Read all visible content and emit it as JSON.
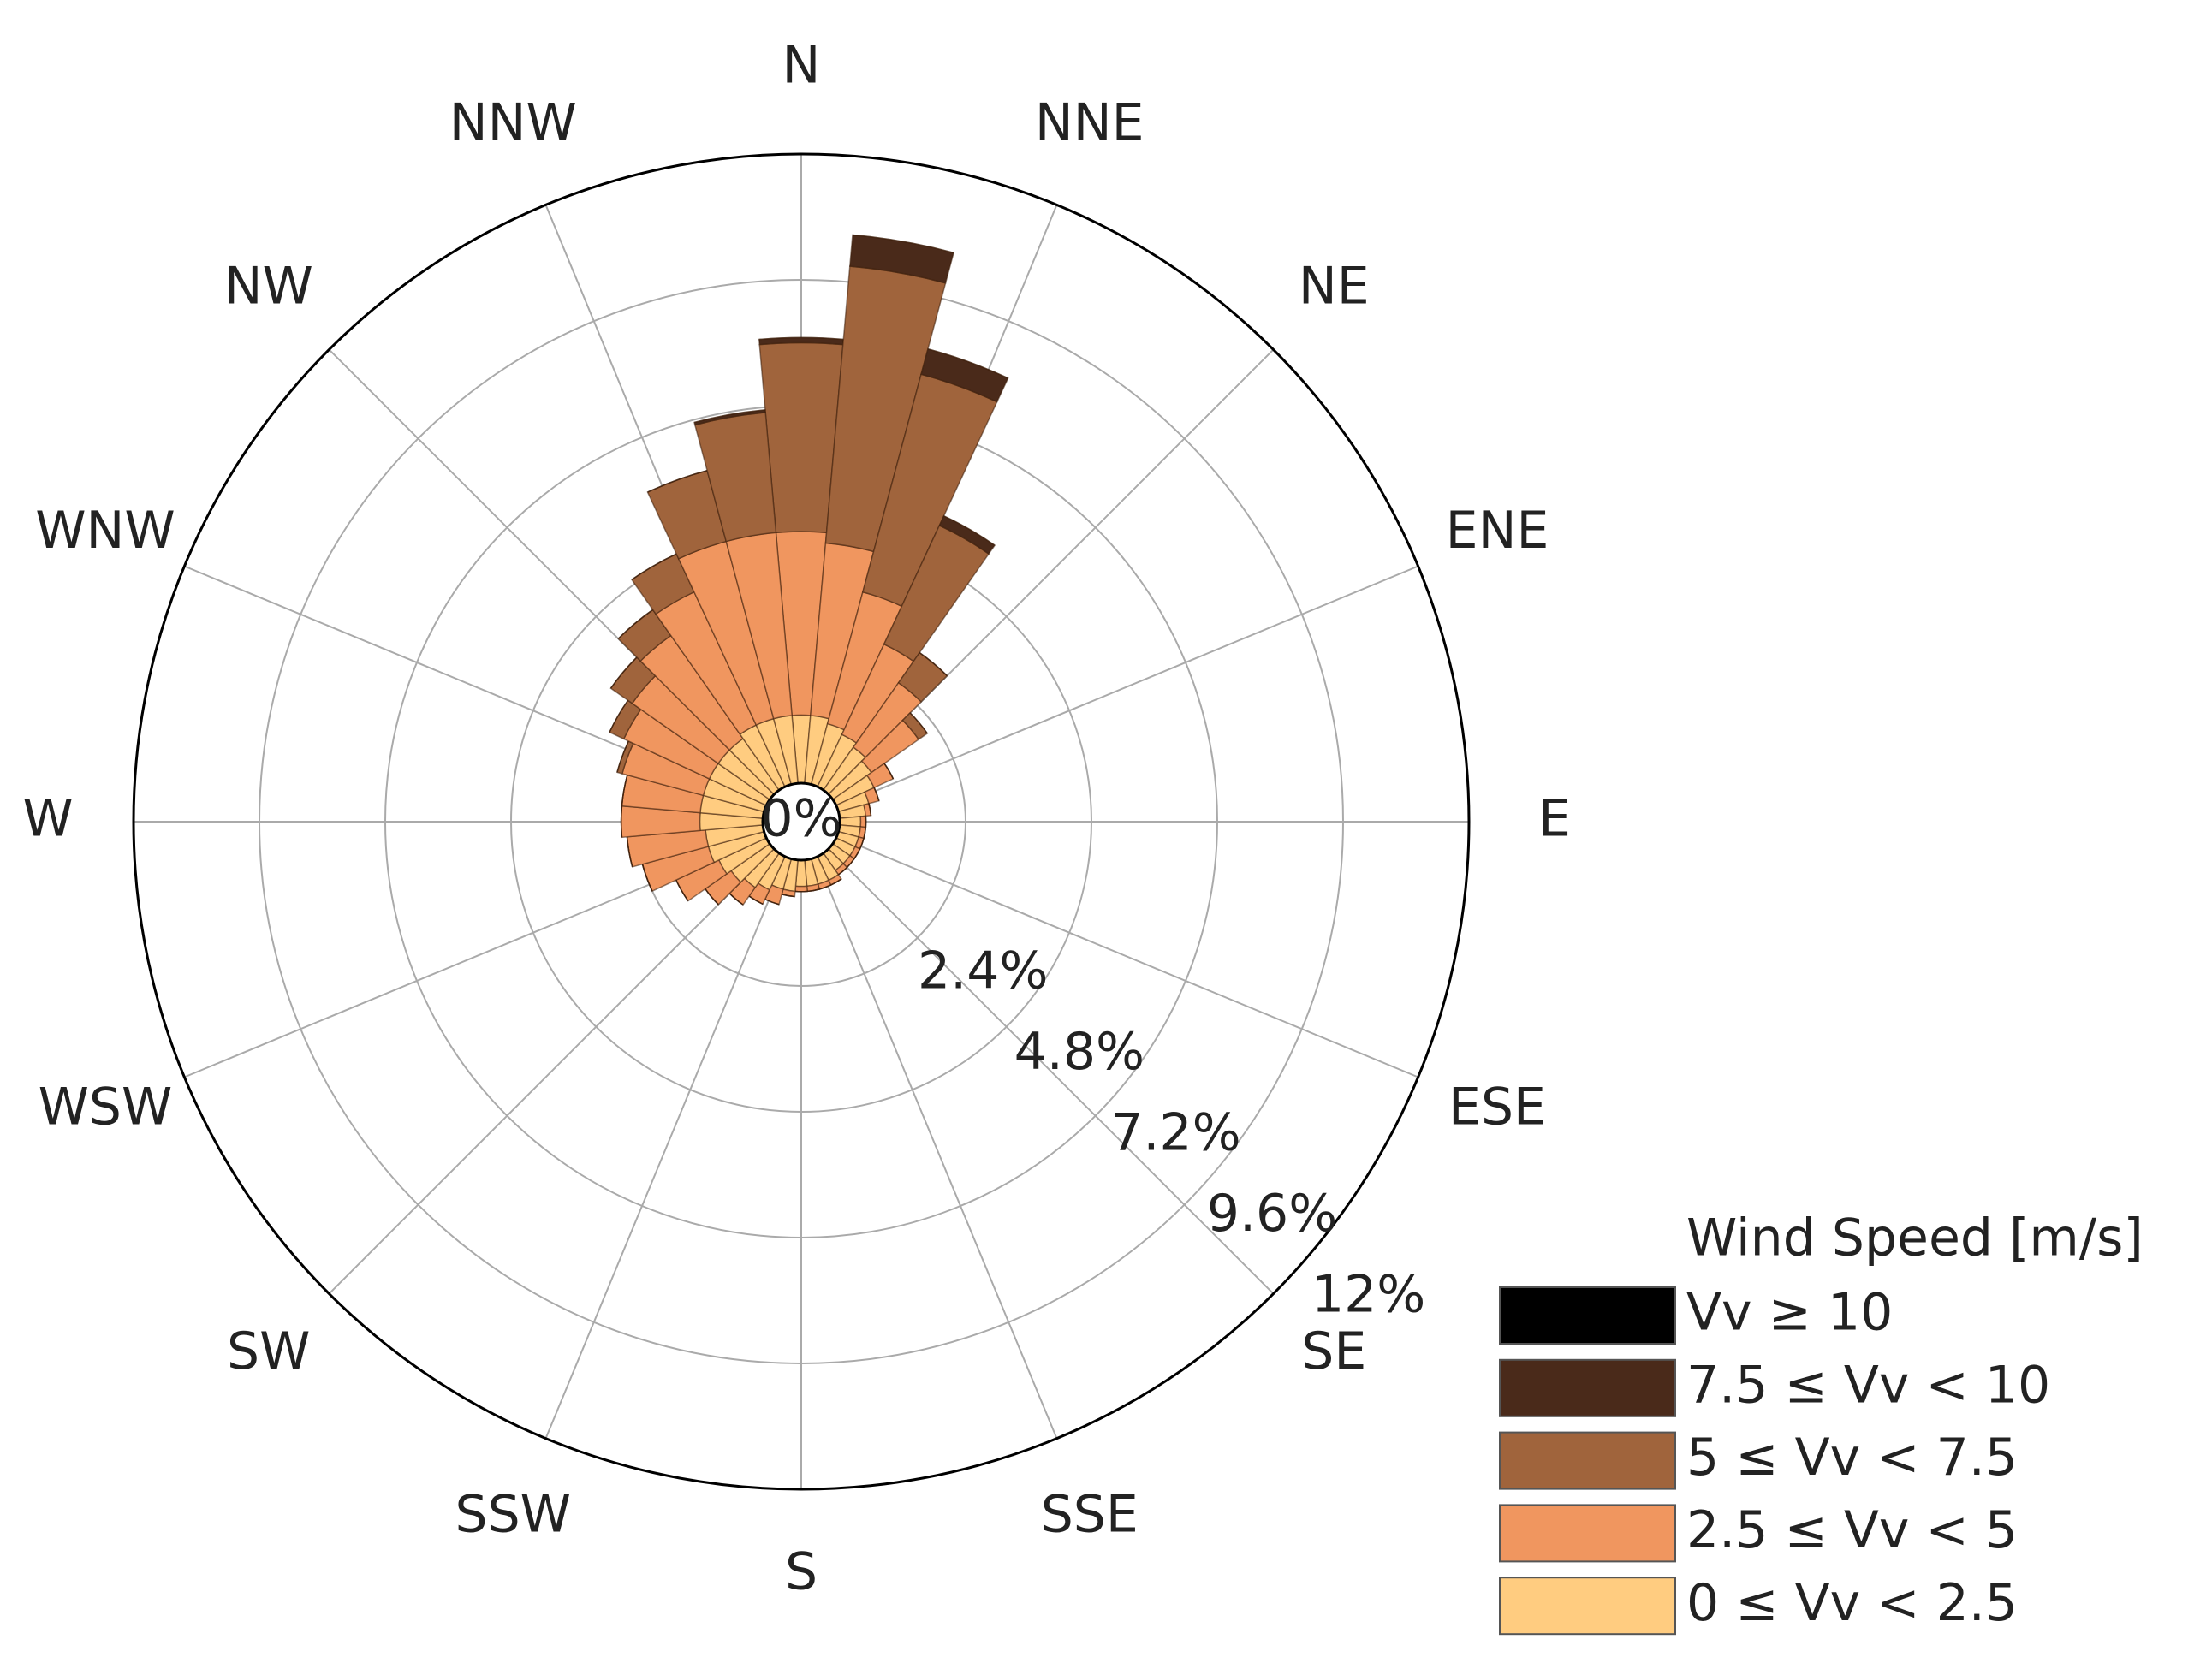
{
  "chart_data": {
    "type": "windrose",
    "direction_labels": [
      "N",
      "NNE",
      "NE",
      "ENE",
      "E",
      "ESE",
      "SE",
      "SSE",
      "S",
      "SSW",
      "SW",
      "WSW",
      "W",
      "WNW",
      "NW",
      "NNW"
    ],
    "directions": [
      0,
      10,
      20,
      30,
      40,
      50,
      60,
      70,
      80,
      90,
      100,
      110,
      120,
      130,
      140,
      150,
      160,
      170,
      180,
      190,
      200,
      210,
      220,
      230,
      240,
      250,
      260,
      270,
      280,
      290,
      300,
      310,
      320,
      330,
      340,
      350
    ],
    "rlim": [
      0,
      12
    ],
    "rticks": [
      {
        "value": 0,
        "label": "0%"
      },
      {
        "value": 2.4,
        "label": "2.4%"
      },
      {
        "value": 4.8,
        "label": "4.8%"
      },
      {
        "value": 7.2,
        "label": "7.2%"
      },
      {
        "value": 9.6,
        "label": "9.6%"
      },
      {
        "value": 12,
        "label": "12%"
      }
    ],
    "grid": true,
    "legend_title": "Wind Speed [m/s]",
    "legend_position": "lower right",
    "series": [
      {
        "name": "Vv ≥ 10",
        "color": "#000000",
        "values": [
          0,
          0,
          0,
          0,
          0,
          0,
          0,
          0,
          0,
          0,
          0,
          0,
          0,
          0,
          0,
          0,
          0,
          0,
          0,
          0,
          0,
          0,
          0,
          0,
          0,
          0,
          0,
          0,
          0,
          0,
          0,
          0,
          0,
          0,
          0,
          0
        ]
      },
      {
        "name": "7.5 ≤ Vv < 10",
        "color": "#4a2a1a",
        "values": [
          0.1,
          0.6,
          0.5,
          0.2,
          0,
          0,
          0,
          0,
          0,
          0,
          0,
          0,
          0,
          0,
          0,
          0,
          0,
          0,
          0,
          0,
          0,
          0,
          0,
          0,
          0,
          0,
          0,
          0,
          0,
          0,
          0,
          0,
          0,
          0,
          0,
          0.05
        ]
      },
      {
        "name": "5 ≤ Vv < 7.5",
        "color": "#a0643c",
        "values": [
          3.6,
          5.3,
          4.3,
          2.5,
          0.7,
          0.2,
          0,
          0,
          0,
          0,
          0,
          0,
          0,
          0,
          0,
          0,
          0,
          0,
          0,
          0,
          0,
          0,
          0,
          0,
          0,
          0,
          0,
          0,
          0,
          0.1,
          0.3,
          0.5,
          0.6,
          0.8,
          1.4,
          2.3
        ]
      },
      {
        "name": "2.5 ≤ Vv < 5",
        "color": "#f0965f",
        "values": [
          3.5,
          3.3,
          2.6,
          1.9,
          1.5,
          1.1,
          0.4,
          0.2,
          0.1,
          0.1,
          0.1,
          0.1,
          0.1,
          0.1,
          0.1,
          0.1,
          0.1,
          0.1,
          0.1,
          0.1,
          0.3,
          0.3,
          0.4,
          0.6,
          0.9,
          1.3,
          1.5,
          1.5,
          1.5,
          1.6,
          1.8,
          2.0,
          2.4,
          2.8,
          3.5,
          3.5
        ]
      },
      {
        "name": "0 ≤ Vv < 2.5",
        "color": "#ffcc80",
        "values": [
          1.3,
          1.3,
          1.2,
          1.1,
          1.0,
          0.9,
          0.8,
          0.6,
          0.5,
          0.4,
          0.4,
          0.4,
          0.4,
          0.4,
          0.4,
          0.5,
          0.5,
          0.5,
          0.5,
          0.6,
          0.6,
          0.7,
          0.8,
          0.9,
          1.0,
          1.1,
          1.1,
          1.2,
          1.2,
          1.2,
          1.2,
          1.2,
          1.2,
          1.3,
          1.3,
          1.3
        ]
      }
    ]
  }
}
